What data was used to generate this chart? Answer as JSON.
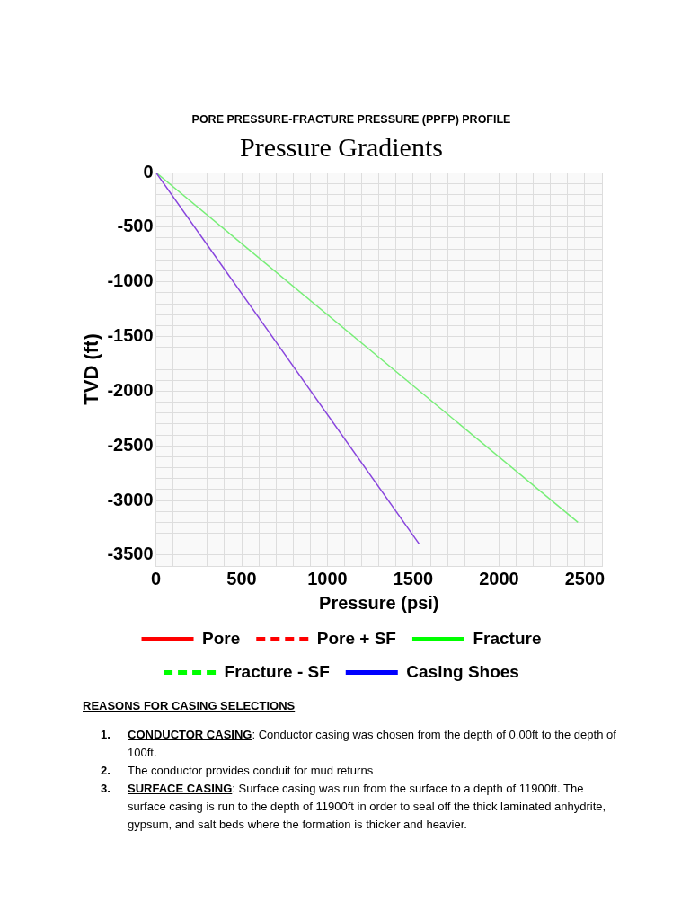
{
  "chart_data": {
    "type": "line",
    "title": "PORE PRESSURE-FRACTURE PRESSURE (PPFP) PROFILE",
    "subtitle": "Pressure Gradients",
    "xlabel": "Pressure (psi)",
    "ylabel": "TVD (ft)",
    "xlim": [
      0,
      2600
    ],
    "ylim": [
      -3600,
      0
    ],
    "xticks": [
      0,
      {
        "value": 100,
        "label": null
      },
      {
        "value": 200,
        "label": null
      },
      {
        "value": 300,
        "label": null
      },
      {
        "value": 400,
        "label": null
      },
      500,
      {
        "value": 600,
        "label": null
      },
      {
        "value": 700,
        "label": null
      },
      {
        "value": 800,
        "label": null
      },
      {
        "value": 900,
        "label": null
      },
      1000,
      {
        "value": 1100,
        "label": null
      },
      {
        "value": 1200,
        "label": null
      },
      {
        "value": 1300,
        "label": null
      },
      {
        "value": 1400,
        "label": null
      },
      1500,
      {
        "value": 1600,
        "label": null
      },
      {
        "value": 1700,
        "label": null
      },
      {
        "value": 1800,
        "label": null
      },
      {
        "value": 1900,
        "label": null
      },
      2000,
      {
        "value": 2100,
        "label": null
      },
      {
        "value": 2200,
        "label": null
      },
      {
        "value": 2300,
        "label": null
      },
      {
        "value": 2400,
        "label": null
      },
      2500,
      {
        "value": 2600,
        "label": null
      }
    ],
    "yticks": [
      0,
      {
        "value": -100,
        "label": null
      },
      {
        "value": -200,
        "label": null
      },
      {
        "value": -300,
        "label": null
      },
      {
        "value": -400,
        "label": null
      },
      -500,
      {
        "value": -600,
        "label": null
      },
      {
        "value": -700,
        "label": null
      },
      {
        "value": -800,
        "label": null
      },
      {
        "value": -900,
        "label": null
      },
      -1000,
      {
        "value": -1100,
        "label": null
      },
      {
        "value": -1200,
        "label": null
      },
      {
        "value": -1300,
        "label": null
      },
      {
        "value": -1400,
        "label": null
      },
      -1500,
      {
        "value": -1600,
        "label": null
      },
      {
        "value": -1700,
        "label": null
      },
      {
        "value": -1800,
        "label": null
      },
      {
        "value": -1900,
        "label": null
      },
      -2000,
      {
        "value": -2100,
        "label": null
      },
      {
        "value": -2200,
        "label": null
      },
      {
        "value": -2300,
        "label": null
      },
      {
        "value": -2400,
        "label": null
      },
      -2500,
      {
        "value": -2600,
        "label": null
      },
      {
        "value": -2700,
        "label": null
      },
      {
        "value": -2800,
        "label": null
      },
      {
        "value": -2900,
        "label": null
      },
      -3000,
      {
        "value": -3100,
        "label": null
      },
      {
        "value": -3200,
        "label": null
      },
      {
        "value": -3300,
        "label": null
      },
      {
        "value": -3400,
        "label": null
      },
      -3500,
      {
        "value": -3600,
        "label": null
      }
    ],
    "grid": true,
    "legend": "bottom",
    "marker": "none",
    "series": [
      {
        "color": "#8844dd",
        "x": [
          0,
          1535
        ],
        "values": [
          0,
          -3400
        ]
      },
      {
        "color": "#77ee77",
        "x": [
          0,
          2460
        ],
        "values": [
          0,
          -3200
        ]
      },
      {
        "name": "Pore",
        "color": "#ff0000",
        "values": [
          null
        ]
      },
      {
        "name": "Pore + SF",
        "color": "#ff0000",
        "line_style": "dashed",
        "values": [
          null
        ]
      },
      {
        "name": "Fracture",
        "color": "#00ff00",
        "values": [
          null
        ]
      },
      {
        "name": "Fracture - SF",
        "color": "#00ff00",
        "line_style": "dashed",
        "values": [
          null
        ]
      },
      {
        "name": "Casing Shoes",
        "color": "#0000ff",
        "values": [
          null
        ]
      }
    ],
    "annotations": [
      "REASONS FOR CASING SELECTIONS",
      "1. CONDUCTOR CASING: Conductor casing was chosen from the depth of 0.00ft to the depth of 100ft.",
      "2. The conductor provides conduit for mud returns",
      "3. SURFACE CASING: Surface casing was run from the surface to a depth of 11900ft. The surface casing is run to the depth of 11900ft in order to seal off the thick laminated anhydrite, gypsum, and salt beds where the formation is  thicker and heavier."
    ]
  }
}
